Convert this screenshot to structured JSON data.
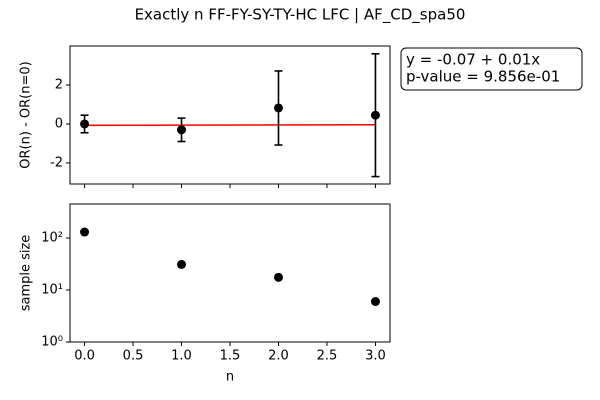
{
  "title": "Exactly n FF-FY-SY-TY-HC LFC | AF_CD_spa50",
  "chart_data": [
    {
      "type": "errorbar",
      "ylabel": "OR(n) - OR(n=0)",
      "x": [
        0,
        1,
        2,
        3
      ],
      "values": [
        0,
        -0.3,
        0.82,
        0.45
      ],
      "errors": [
        0.45,
        0.6,
        1.9,
        3.15
      ],
      "color": "#000000",
      "fit": {
        "x": [
          0,
          3
        ],
        "values": [
          -0.07,
          -0.04
        ],
        "color": "#ff0000"
      },
      "annotation": [
        "y = -0.07 + 0.01x",
        "p-value = 9.856e-01"
      ],
      "xlim": [
        -0.15,
        3.15
      ],
      "ylim": [
        -3.08,
        4.0
      ],
      "yticks": [
        -2,
        0,
        2
      ],
      "xticks": [
        {
          "value": 0,
          "label": "0.0"
        },
        {
          "value": 0.5,
          "label": "0.5"
        },
        {
          "value": 1,
          "label": "1.0"
        },
        {
          "value": 1.5,
          "label": "1.5"
        },
        {
          "value": 2,
          "label": "2.0"
        },
        {
          "value": 2.5,
          "label": "2.5"
        },
        {
          "value": 3,
          "label": "3.0"
        }
      ]
    },
    {
      "type": "scatter",
      "xlabel": "n",
      "ylabel": "sample size",
      "log_y": true,
      "x": [
        0,
        1,
        2,
        3
      ],
      "values": [
        130,
        31,
        17.5,
        6
      ],
      "color": "#000000",
      "xlim": [
        -0.15,
        3.15
      ],
      "ylim": [
        1,
        450
      ],
      "yticks": [
        {
          "value": 1,
          "label": "10⁰"
        },
        {
          "value": 10,
          "label": "10¹"
        },
        {
          "value": 100,
          "label": "10²"
        }
      ],
      "xticks": [
        {
          "value": 0,
          "label": "0.0"
        },
        {
          "value": 0.5,
          "label": "0.5"
        },
        {
          "value": 1,
          "label": "1.0"
        },
        {
          "value": 1.5,
          "label": "1.5"
        },
        {
          "value": 2,
          "label": "2.0"
        },
        {
          "value": 2.5,
          "label": "2.5"
        },
        {
          "value": 3,
          "label": "3.0"
        }
      ]
    }
  ]
}
